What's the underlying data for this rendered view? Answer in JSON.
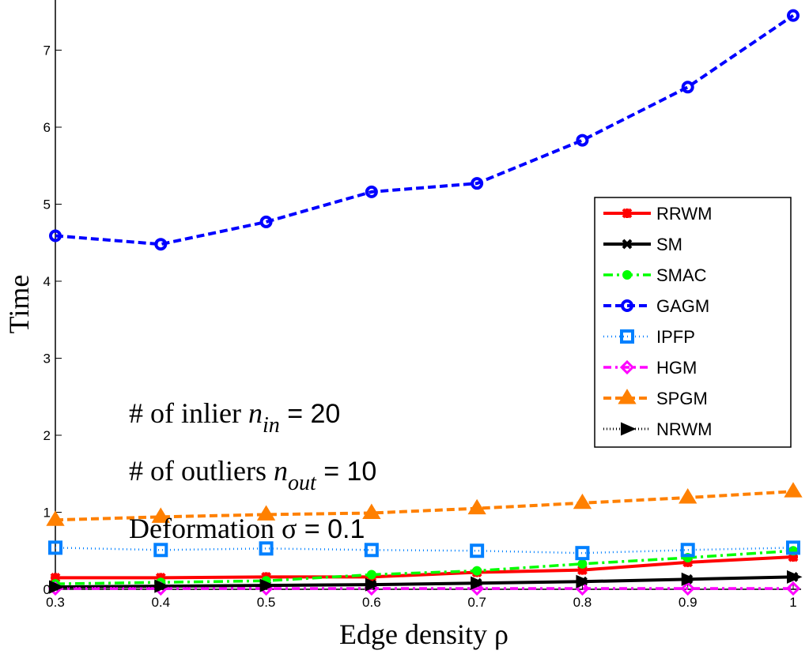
{
  "chart_data": {
    "type": "line",
    "xlabel": "Edge density ρ",
    "ylabel": "Time",
    "x": [
      0.3,
      0.4,
      0.5,
      0.6,
      0.7,
      0.8,
      0.9,
      1.0
    ],
    "xticks": [
      "0.3",
      "0.4",
      "0.5",
      "0.6",
      "0.7",
      "0.8",
      "0.9",
      "1"
    ],
    "yticks": [
      "0",
      "1",
      "2",
      "3",
      "4",
      "5",
      "6",
      "7"
    ],
    "xlim": [
      0.3,
      1.0
    ],
    "ylim": [
      0,
      7.5
    ],
    "legend_position": "right",
    "series": [
      {
        "name": "RRWM",
        "color": "#ff0000",
        "dash": "",
        "marker": "star",
        "values": [
          0.15,
          0.15,
          0.16,
          0.16,
          0.22,
          0.25,
          0.35,
          0.42
        ]
      },
      {
        "name": "SM",
        "color": "#000000",
        "dash": "",
        "marker": "x",
        "values": [
          0.03,
          0.04,
          0.05,
          0.06,
          0.08,
          0.1,
          0.13,
          0.16
        ]
      },
      {
        "name": "SMAC",
        "color": "#00ff00",
        "dash": "12 5 3 5",
        "marker": "circle",
        "values": [
          0.07,
          0.09,
          0.11,
          0.19,
          0.24,
          0.33,
          0.41,
          0.5
        ]
      },
      {
        "name": "GAGM",
        "color": "#0000ff",
        "dash": "10 5",
        "marker": "hexagram",
        "values": [
          4.59,
          4.48,
          4.77,
          5.16,
          5.27,
          5.83,
          6.52,
          7.45
        ]
      },
      {
        "name": "IPFP",
        "color": "#0080ff",
        "dash": "1 4",
        "marker": "square",
        "values": [
          0.54,
          0.51,
          0.53,
          0.51,
          0.5,
          0.47,
          0.51,
          0.54
        ]
      },
      {
        "name": "HGM",
        "color": "#ff00ff",
        "dash": "10 5 3 5",
        "marker": "diamond",
        "values": [
          0.01,
          0.01,
          0.01,
          0.01,
          0.01,
          0.01,
          0.01,
          0.01
        ]
      },
      {
        "name": "SPGM",
        "color": "#ff8000",
        "dash": "10 5",
        "marker": "triangle",
        "values": [
          0.9,
          0.94,
          0.97,
          0.99,
          1.05,
          1.12,
          1.19,
          1.27
        ]
      },
      {
        "name": "NRWM",
        "color": "#000000",
        "dash": "1 3",
        "marker": "triangle-right",
        "values": [
          0.03,
          0.04,
          0.05,
          0.06,
          0.08,
          0.1,
          0.13,
          0.16
        ]
      }
    ],
    "annotations": [
      {
        "text": "# of inlier ",
        "sym": "n",
        "sub": "in",
        "val": " = 20"
      },
      {
        "text": "# of outliers ",
        "sym": "n",
        "sub": "out",
        "val": " = 10"
      },
      {
        "text": "Deformation ",
        "sym": "σ",
        "sub": "",
        "val": " = 0.1"
      }
    ]
  }
}
